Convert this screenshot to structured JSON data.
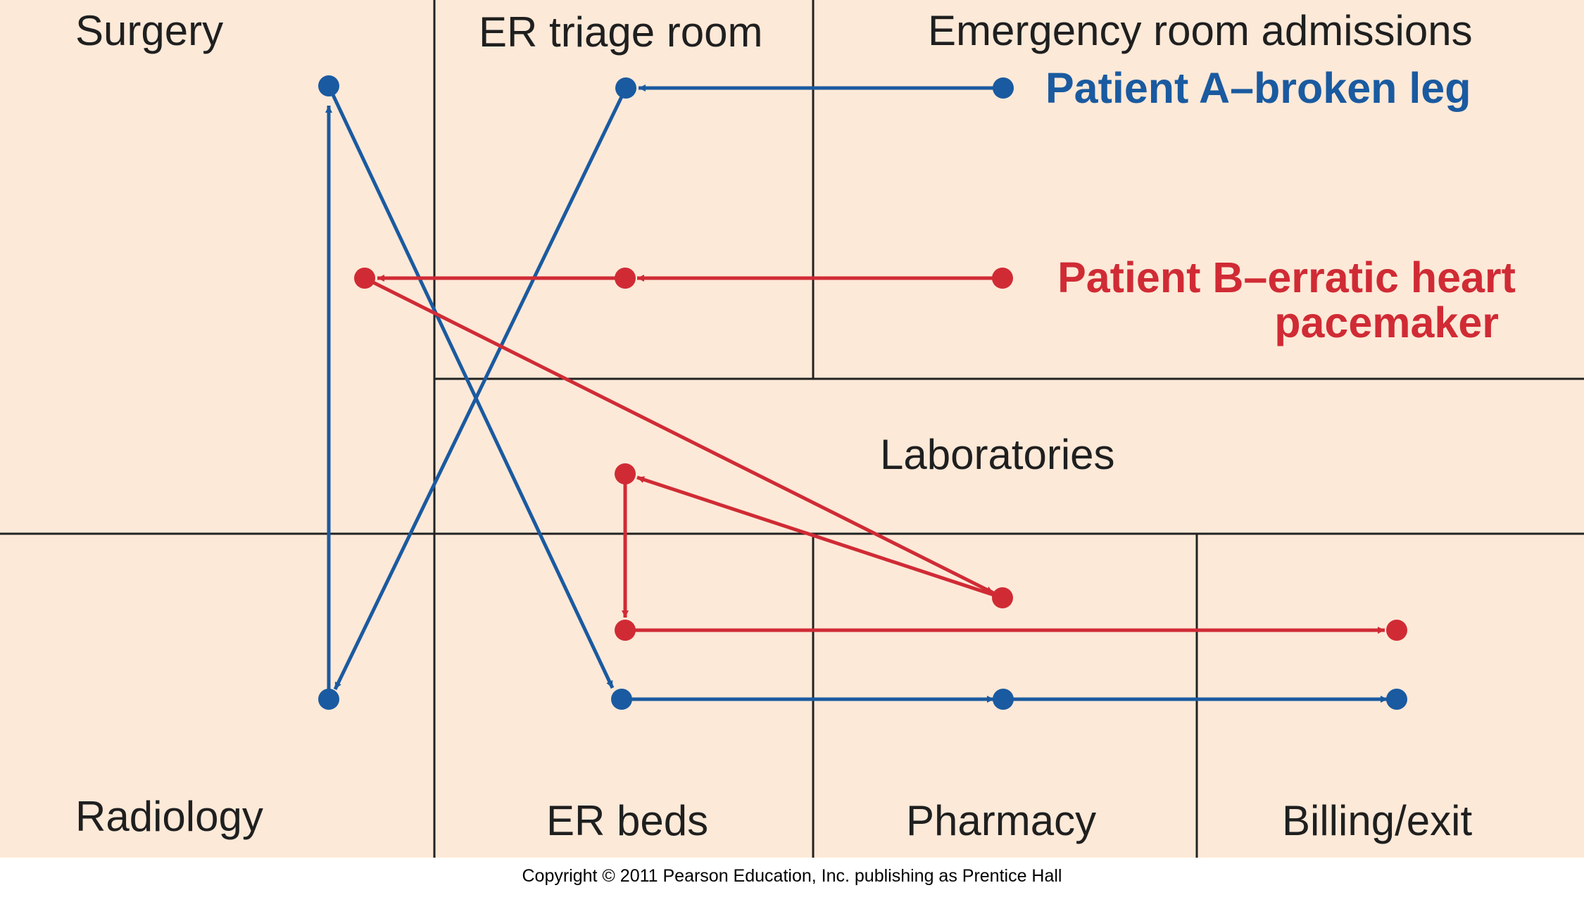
{
  "departments": {
    "surgery": "Surgery",
    "er_triage_room": "ER triage room",
    "emergency_room_admissions": "Emergency room admissions",
    "laboratories": "Laboratories",
    "radiology": "Radiology",
    "er_beds": "ER beds",
    "pharmacy": "Pharmacy",
    "billing_exit": "Billing/exit"
  },
  "patients": {
    "a": {
      "label": "Patient A–broken leg",
      "color": "#1a5aa0"
    },
    "b": {
      "label_line1": "Patient B–erratic heart",
      "label_line2": "pacemaker",
      "color": "#d02b35"
    }
  },
  "colors": {
    "background": "#fde9d8",
    "grid_lines": "#222222"
  },
  "copyright": "Copyright © 2011 Pearson Education, Inc. publishing as Prentice Hall"
}
